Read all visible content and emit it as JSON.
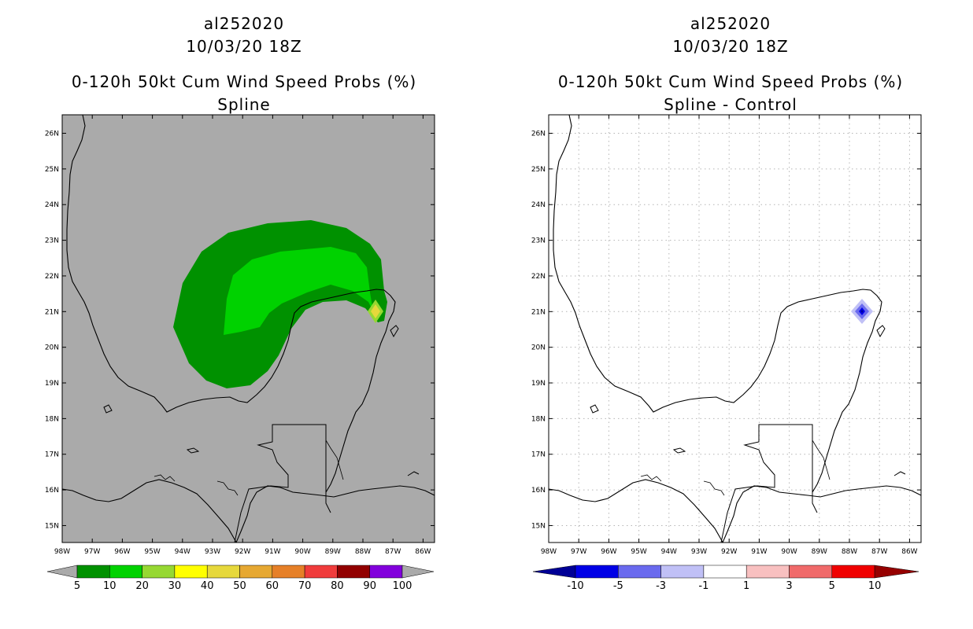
{
  "left_panel": {
    "storm_id": "al252020",
    "datetime": "10/03/20 18Z",
    "product": "0-120h 50kt Cum Wind Speed Probs (%)",
    "subtitle": "Spline",
    "background_color": "#aaaaaa",
    "colorbar": {
      "labels": [
        "5",
        "10",
        "20",
        "30",
        "40",
        "50",
        "60",
        "70",
        "80",
        "90",
        "100"
      ],
      "colors": [
        "#009100",
        "#00d200",
        "#96d832",
        "#ffff00",
        "#e6d83c",
        "#e6a832",
        "#e68028",
        "#f03c3c",
        "#920000",
        "#8200dc"
      ],
      "extend_color": "#aaaaaa"
    }
  },
  "right_panel": {
    "storm_id": "al252020",
    "datetime": "10/03/20 18Z",
    "product": "0-120h 50kt Cum Wind Speed Probs (%)",
    "subtitle": "Spline - Control",
    "background_color": "#ffffff",
    "colorbar": {
      "labels": [
        "-10",
        "-5",
        "-3",
        "-1",
        "1",
        "3",
        "5",
        "10"
      ],
      "colors": [
        "#0000e6",
        "#6a6aee",
        "#c0c0f6",
        "#ffffff",
        "#f8c0c0",
        "#f06a6a",
        "#f00000"
      ],
      "low_extend_color": "#000096",
      "high_extend_color": "#960000"
    }
  },
  "axes": {
    "lat_labels": [
      "26N",
      "25N",
      "24N",
      "23N",
      "22N",
      "21N",
      "20N",
      "19N",
      "18N",
      "17N",
      "16N",
      "15N"
    ],
    "lon_labels": [
      "98W",
      "97W",
      "96W",
      "95W",
      "94W",
      "93W",
      "92W",
      "91W",
      "90W",
      "89W",
      "88W",
      "87W",
      "86W"
    ]
  }
}
